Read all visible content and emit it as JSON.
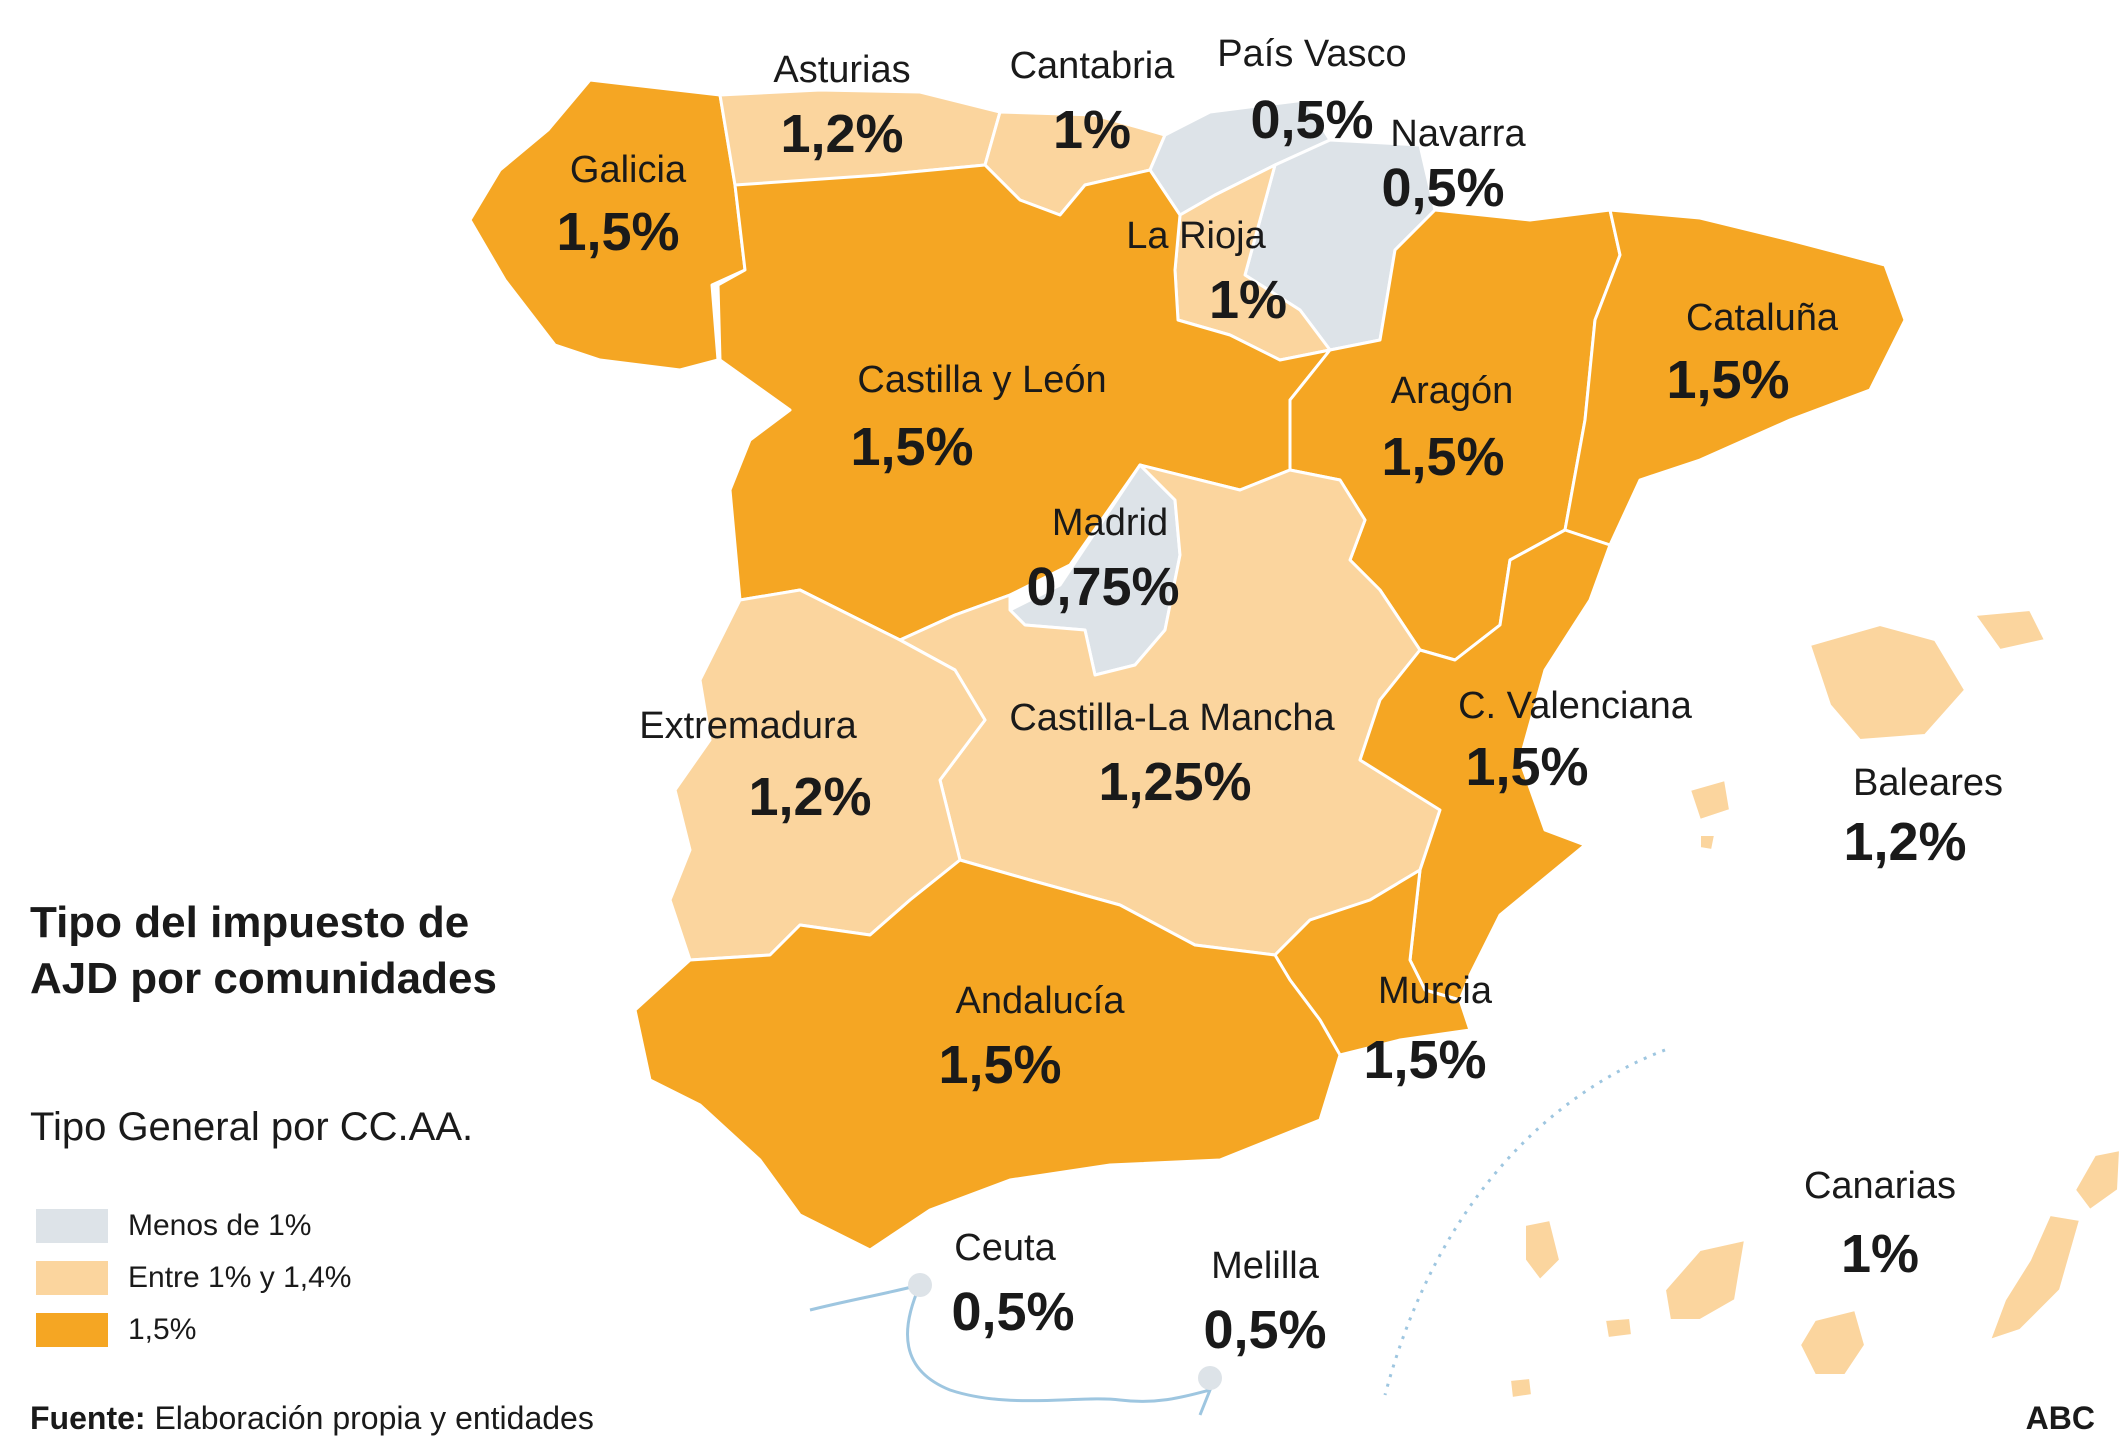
{
  "title": "Tipo del impuesto de AJD por comunidades",
  "subtitle": "Tipo General por CC.AA.",
  "colors": {
    "low": "#dde3e8",
    "mid": "#fbd59e",
    "high": "#f5a623",
    "sea_line": "#9ec6e0"
  },
  "legend": [
    {
      "label": "Menos de 1%",
      "color": "#dde3e8"
    },
    {
      "label": "Entre 1% y 1,4%",
      "color": "#fbd59e"
    },
    {
      "label": "1,5%",
      "color": "#f5a623"
    }
  ],
  "regions": [
    {
      "name": "Galicia",
      "value": "1,5%"
    },
    {
      "name": "Asturias",
      "value": "1,2%"
    },
    {
      "name": "Cantabria",
      "value": "1%"
    },
    {
      "name": "País Vasco",
      "value": "0,5%"
    },
    {
      "name": "Navarra",
      "value": "0,5%"
    },
    {
      "name": "La Rioja",
      "value": "1%"
    },
    {
      "name": "Castilla y León",
      "value": "1,5%"
    },
    {
      "name": "Aragón",
      "value": "1,5%"
    },
    {
      "name": "Cataluña",
      "value": "1,5%"
    },
    {
      "name": "Madrid",
      "value": "0,75%"
    },
    {
      "name": "Extremadura",
      "value": "1,2%"
    },
    {
      "name": "Castilla-La Mancha",
      "value": "1,25%"
    },
    {
      "name": "C. Valenciana",
      "value": "1,5%"
    },
    {
      "name": "Baleares",
      "value": "1,2%"
    },
    {
      "name": "Andalucía",
      "value": "1,5%"
    },
    {
      "name": "Murcia",
      "value": "1,5%"
    },
    {
      "name": "Canarias",
      "value": "1%"
    },
    {
      "name": "Ceuta",
      "value": "0,5%"
    },
    {
      "name": "Melilla",
      "value": "0,5%"
    }
  ],
  "source": {
    "prefix": "Fuente:",
    "text": "Elaboración propia y entidades"
  },
  "brand": "ABC"
}
